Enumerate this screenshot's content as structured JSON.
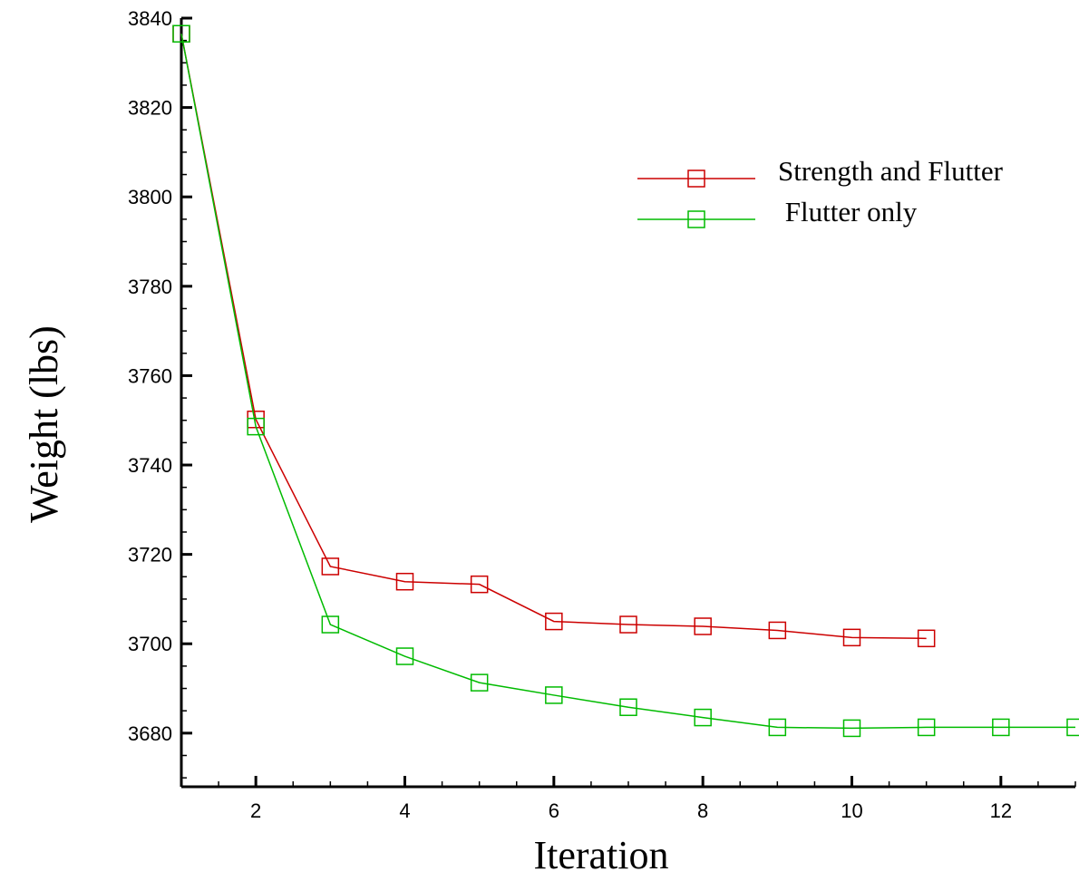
{
  "chart_data": {
    "type": "line",
    "xlabel": "Iteration",
    "ylabel": "Weight (lbs)",
    "xlim": [
      1,
      13
    ],
    "ylim": [
      3668,
      3840
    ],
    "x_ticks": [
      2,
      4,
      6,
      8,
      10,
      12
    ],
    "y_ticks": [
      3680,
      3700,
      3720,
      3740,
      3760,
      3780,
      3800,
      3820,
      3840
    ],
    "legend_position": "top-right",
    "marker": "square",
    "grid": false,
    "series": [
      {
        "name": "Strength and Flutter",
        "color": "#cc0000",
        "x": [
          1,
          2,
          3,
          4,
          5,
          6,
          7,
          8,
          9,
          10,
          11
        ],
        "y": [
          3836.5,
          3750.2,
          3717.3,
          3713.9,
          3713.3,
          3705.0,
          3704.3,
          3703.9,
          3703.0,
          3701.4,
          3701.2
        ]
      },
      {
        "name": " Flutter only",
        "color": "#00bb00",
        "x": [
          1,
          2,
          3,
          4,
          5,
          6,
          7,
          8,
          9,
          10,
          11,
          12,
          13
        ],
        "y": [
          3836.5,
          3748.6,
          3704.3,
          3697.2,
          3691.3,
          3688.5,
          3685.8,
          3683.5,
          3681.3,
          3681.1,
          3681.3,
          3681.3,
          3681.3
        ]
      }
    ]
  }
}
